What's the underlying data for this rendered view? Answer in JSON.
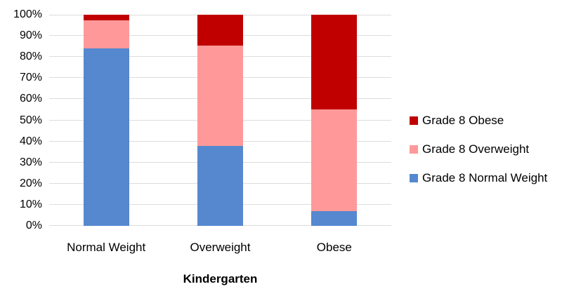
{
  "chart_data": {
    "type": "bar",
    "subtype": "100-percent-stacked",
    "categories": [
      "Normal Weight",
      "Overweight",
      "Obese"
    ],
    "series": [
      {
        "name": "Grade 8 Normal Weight",
        "color": "#5588CE",
        "values": [
          84,
          38,
          7
        ]
      },
      {
        "name": "Grade 8 Overweight",
        "color": "#FF9999",
        "values": [
          13.5,
          47.5,
          48
        ]
      },
      {
        "name": "Grade 8 Obese",
        "color": "#C00000",
        "values": [
          2.5,
          14.5,
          45
        ]
      }
    ],
    "title": "",
    "xlabel": "Kindergarten",
    "ylabel": "",
    "ylim": [
      0,
      100
    ],
    "y_ticks": [
      "0%",
      "10%",
      "20%",
      "30%",
      "40%",
      "50%",
      "60%",
      "70%",
      "80%",
      "90%",
      "100%"
    ],
    "grid": true,
    "gridline_color": "#DCDCDC",
    "legend_position": "right",
    "legend_order_top_to_bottom": [
      "Grade 8 Obese",
      "Grade 8 Overweight",
      "Grade 8 Normal Weight"
    ]
  }
}
